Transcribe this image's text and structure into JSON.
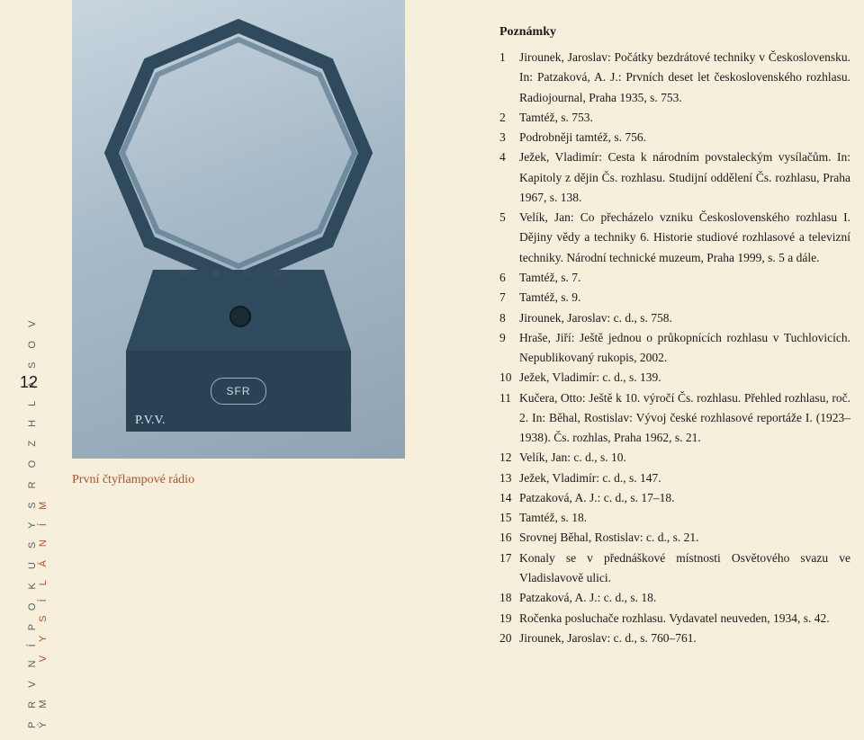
{
  "photo": {
    "plaque": "SFR",
    "handLabel": "P.V.V."
  },
  "caption": "První čtyřlampové rádio",
  "sidebar": {
    "line1": "P R V N Í   P O K U S Y   S   R O Z H L A S O V Ý M",
    "line2": "V Y S Í L Á N Í M"
  },
  "pageNumber": "12",
  "notesTitle": "Poznámky",
  "notes": [
    {
      "n": "1",
      "t": "Jirounek, Jaroslav: Počátky bezdrátové techniky v Československu. In: Patzaková, A. J.: Prvních deset let československého rozhlasu. Radiojournal, Praha 1935, s. 753."
    },
    {
      "n": "2",
      "t": "Tamtéž, s. 753."
    },
    {
      "n": "3",
      "t": "Podrobněji tamtéž, s. 756."
    },
    {
      "n": "4",
      "t": "Ježek, Vladimír: Cesta k národním povstaleckým vysílačům. In: Kapitoly z dějin Čs. rozhlasu. Studijní oddělení Čs. rozhlasu, Praha 1967, s. 138."
    },
    {
      "n": "5",
      "t": "Velík, Jan: Co přecházelo vzniku Československého rozhlasu I. Dějiny vědy a techniky 6. Historie studiové rozhlasové a televizní techniky. Národní technické muzeum, Praha 1999, s. 5 a dále."
    },
    {
      "n": "6",
      "t": "Tamtéž, s. 7."
    },
    {
      "n": "7",
      "t": "Tamtéž, s. 9."
    },
    {
      "n": "8",
      "t": "Jirounek, Jaroslav: c. d., s. 758."
    },
    {
      "n": "9",
      "t": "Hraše, Jiří: Ještě jednou o průkopnících rozhlasu v Tuchlovicích. Nepublikovaný rukopis, 2002."
    },
    {
      "n": "10",
      "t": "Ježek, Vladimír: c. d., s. 139."
    },
    {
      "n": "11",
      "t": "Kučera, Otto: Ještě k 10. výročí Čs. rozhlasu. Přehled rozhlasu, roč. 2. In: Běhal, Rostislav: Vývoj české rozhlasové reportáže I. (1923–1938). Čs. rozhlas, Praha 1962, s. 21."
    },
    {
      "n": "12",
      "t": "Velík, Jan: c. d., s. 10."
    },
    {
      "n": "13",
      "t": "Ježek, Vladimír: c. d., s. 147."
    },
    {
      "n": "14",
      "t": "Patzaková, A. J.: c. d., s. 17–18."
    },
    {
      "n": "15",
      "t": "Tamtéž, s. 18."
    },
    {
      "n": "16",
      "t": "Srovnej Běhal, Rostislav: c. d., s. 21."
    },
    {
      "n": "17",
      "t": "Konaly se v přednáškové místnosti Osvětového svazu ve Vladislavově ulici."
    },
    {
      "n": "18",
      "t": "Patzaková, A. J.: c. d., s. 18."
    },
    {
      "n": "19",
      "t": "Ročenka posluchače rozhlasu. Vydavatel neuveden, 1934, s. 42."
    },
    {
      "n": "20",
      "t": "Jirounek, Jaroslav: c. d., s. 760–761."
    }
  ]
}
